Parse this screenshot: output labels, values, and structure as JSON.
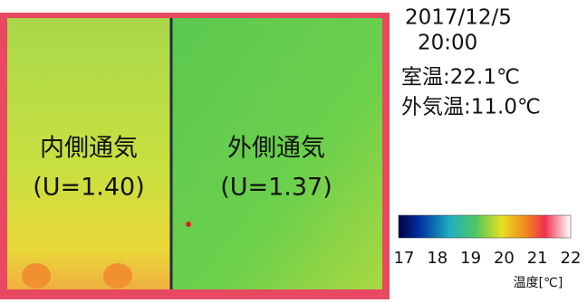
{
  "info": {
    "date": "2017/12/5",
    "time": "20:00",
    "indoor": "室温:22.1℃",
    "outdoor": "外気温:11.0℃"
  },
  "panels": [
    {
      "name": "内側通気",
      "value": "(U=1.40)"
    },
    {
      "name": "外側通気",
      "value": "(U=1.37)"
    }
  ],
  "colorbar": {
    "ticks": [
      17,
      18,
      19,
      20,
      21,
      22
    ],
    "unit": "温度[℃]"
  }
}
